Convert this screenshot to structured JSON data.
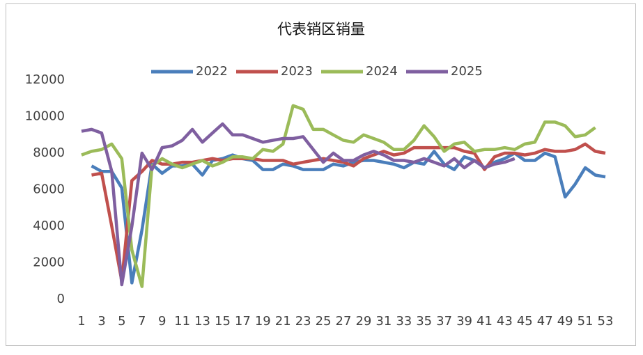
{
  "chart_data": {
    "type": "line",
    "title": "代表销区销量",
    "categories": [
      1,
      null,
      3,
      null,
      5,
      null,
      7,
      null,
      9,
      null,
      11,
      null,
      13,
      null,
      15,
      null,
      17,
      null,
      19,
      null,
      21,
      null,
      23,
      null,
      25,
      null,
      27,
      null,
      29,
      null,
      31,
      null,
      33,
      null,
      35,
      null,
      37,
      null,
      39,
      null,
      41,
      null,
      43,
      null,
      45,
      null,
      47,
      null,
      49,
      null,
      51,
      null,
      53
    ],
    "series": [
      {
        "name": "2022",
        "color": "#4a7ebb",
        "values": [
          null,
          7300,
          7000,
          7000,
          6100,
          900,
          3800,
          7400,
          6900,
          7300,
          7300,
          7400,
          6800,
          7600,
          7700,
          7900,
          7700,
          7600,
          7100,
          7100,
          7400,
          7300,
          7100,
          7100,
          7100,
          7400,
          7300,
          7500,
          7600,
          7600,
          7500,
          7400,
          7200,
          7500,
          7400,
          8100,
          7400,
          7100,
          7800,
          7600,
          7200,
          7500,
          7700,
          8000,
          7600,
          7600,
          8000,
          7800,
          5600,
          6300,
          7200,
          6800,
          6700
        ]
      },
      {
        "name": "2023",
        "color": "#c0504d",
        "values": [
          null,
          6800,
          6900,
          4000,
          1000,
          6500,
          7000,
          7600,
          7400,
          7400,
          7500,
          7500,
          7600,
          7700,
          7600,
          7700,
          7700,
          7700,
          7600,
          7600,
          7600,
          7400,
          7500,
          7600,
          7700,
          7600,
          7500,
          7300,
          7700,
          7900,
          8100,
          7900,
          8000,
          8300,
          8300,
          8300,
          8300,
          8300,
          8100,
          8000,
          7100,
          7800,
          8000,
          8000,
          7900,
          8000,
          8200,
          8100,
          8100,
          8200,
          8500,
          8100,
          8000
        ]
      },
      {
        "name": "2024",
        "color": "#9bbb59",
        "values": [
          7900,
          8100,
          8200,
          8500,
          7700,
          2700,
          700,
          7300,
          7700,
          7400,
          7200,
          7400,
          7600,
          7300,
          7500,
          7800,
          7800,
          7700,
          8200,
          8100,
          8500,
          10600,
          10400,
          9300,
          9300,
          9000,
          8700,
          8600,
          9000,
          8800,
          8600,
          8200,
          8200,
          8700,
          9500,
          8900,
          8100,
          8500,
          8600,
          8100,
          8200,
          8200,
          8300,
          8200,
          8500,
          8600,
          9700,
          9700,
          9500,
          8900,
          9000,
          9400,
          null
        ]
      },
      {
        "name": "2025",
        "color": "#7f5fa0",
        "values": [
          9200,
          9300,
          9100,
          7000,
          800,
          4000,
          8000,
          7100,
          8300,
          8400,
          8700,
          9300,
          8600,
          9100,
          9600,
          9000,
          9000,
          8800,
          8600,
          8700,
          8800,
          8800,
          8900,
          8200,
          7500,
          8000,
          7600,
          7600,
          7900,
          8100,
          7900,
          7600,
          7600,
          7500,
          7700,
          7500,
          7300,
          7700,
          7200,
          7600,
          7200,
          7400,
          7500,
          7700,
          null,
          null,
          null,
          null,
          null,
          null,
          null,
          null,
          null
        ]
      }
    ],
    "ylim": [
      0,
      12000
    ],
    "yticks": [
      0,
      2000,
      4000,
      6000,
      8000,
      10000,
      12000
    ],
    "grid": false,
    "legend": "top"
  }
}
